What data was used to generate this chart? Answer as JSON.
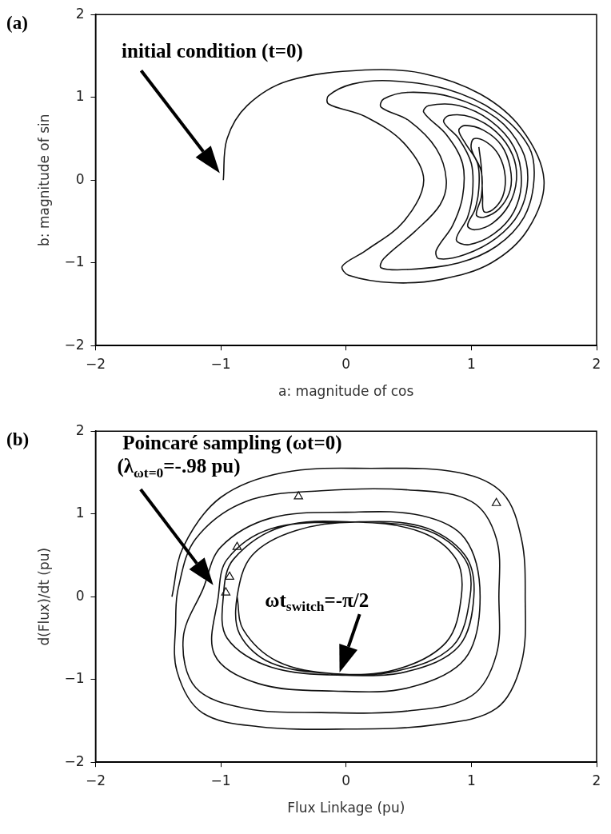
{
  "chart_data": [
    {
      "type": "line",
      "title": "(a)",
      "xlabel": "a: magnitude of cos",
      "ylabel": "b: magnitude of sin",
      "xlim": [
        -2,
        2
      ],
      "ylim": [
        -2,
        2
      ],
      "xticks": [
        -2,
        -1,
        0,
        1,
        2
      ],
      "yticks": [
        -2,
        -1,
        0,
        1,
        2
      ],
      "grid": false,
      "legend": false,
      "annotations": [
        "initial condition (t=0)"
      ],
      "series": [
        {
          "color": "#111111",
          "marker": "none",
          "x": [
            -0.98,
            -0.95,
            -0.79,
            -0.46,
            0.15,
            0.61,
            1.07,
            1.4,
            1.58,
            1.45,
            1.16,
            0.76,
            0.37,
            0.02,
            -0.03,
            0.15,
            0.46,
            0.62,
            0.46,
            0.15,
            -0.14,
            -0.14,
            0.05,
            0.35,
            0.8,
            1.2,
            1.46,
            1.5,
            1.42,
            1.2,
            0.9,
            0.5,
            0.28,
            0.3,
            0.55,
            0.75,
            0.8,
            0.72,
            0.5,
            0.28,
            0.3,
            0.5,
            0.85,
            1.2,
            1.4,
            1.45,
            1.38,
            1.2,
            0.95,
            0.74,
            0.72,
            0.85,
            0.93,
            0.93,
            0.8,
            0.62,
            0.66,
            0.9,
            1.15,
            1.34,
            1.4,
            1.34,
            1.18,
            0.98,
            0.88,
            0.97,
            1.01,
            1.0,
            0.9,
            0.78,
            0.82,
            1.0,
            1.2,
            1.33,
            1.36,
            1.3,
            1.17,
            1.03,
            0.97,
            1.03,
            1.06,
            1.05,
            0.95,
            0.9,
            0.95,
            1.1,
            1.24,
            1.31,
            1.31,
            1.22,
            1.1,
            1.04,
            1.08,
            1.08,
            1.0,
            1.02,
            1.12,
            1.22,
            1.27,
            1.25,
            1.17,
            1.1,
            1.09,
            1.08,
            1.06
          ],
          "values": [
            0,
            0.5,
            0.9,
            1.2,
            1.33,
            1.29,
            1.04,
            0.62,
            0,
            -0.6,
            -1.0,
            -1.2,
            -1.24,
            -1.15,
            -1.04,
            -0.86,
            -0.5,
            0,
            0.45,
            0.77,
            0.92,
            1.02,
            1.16,
            1.2,
            1.1,
            0.82,
            0.4,
            0,
            -0.45,
            -0.8,
            -1.0,
            -1.08,
            -1.06,
            -0.95,
            -0.62,
            -0.3,
            0,
            0.38,
            0.72,
            0.88,
            0.98,
            1.06,
            1.0,
            0.75,
            0.38,
            0,
            -0.4,
            -0.7,
            -0.9,
            -0.95,
            -0.85,
            -0.55,
            -0.2,
            0.2,
            0.55,
            0.82,
            0.9,
            0.9,
            0.72,
            0.4,
            0,
            -0.38,
            -0.65,
            -0.78,
            -0.72,
            -0.45,
            -0.15,
            0.2,
            0.5,
            0.7,
            0.78,
            0.76,
            0.58,
            0.3,
            0,
            -0.3,
            -0.52,
            -0.6,
            -0.55,
            -0.35,
            -0.1,
            0.2,
            0.45,
            0.6,
            0.66,
            0.6,
            0.42,
            0.15,
            -0.12,
            -0.35,
            -0.45,
            -0.42,
            -0.2,
            0.1,
            0.38,
            0.5,
            0.46,
            0.3,
            0.05,
            -0.2,
            -0.36,
            -0.38,
            -0.2,
            0.15,
            0.4
          ]
        }
      ]
    },
    {
      "type": "line",
      "title": "(b)",
      "xlabel": "Flux Linkage (pu)",
      "ylabel": "d(Flux)/dt (pu)",
      "xlim": [
        -2,
        2
      ],
      "ylim": [
        -2,
        2
      ],
      "xticks": [
        -2,
        -1,
        0,
        1,
        2
      ],
      "yticks": [
        -2,
        -1,
        0,
        1,
        2
      ],
      "grid": false,
      "legend": false,
      "annotations": [
        "Poincaré sampling (ωt=0)",
        "(λ$_{ωt=0}$=-.98 pu)",
        "ωt$_{switch}$=-π/2"
      ],
      "series": [
        {
          "color": "#111111",
          "marker": "none",
          "x": [
            -1.39,
            -1.3,
            -1.0,
            -0.5,
            0.2,
            0.9,
            1.25,
            1.4,
            1.43,
            1.4,
            1.2,
            0.7,
            0,
            -0.7,
            -1.15,
            -1.35,
            -1.36,
            -1.34,
            -1.2,
            -0.8,
            -0.2,
            0.5,
            1.0,
            1.2,
            1.22,
            1.2,
            1.0,
            0.5,
            -0.2,
            -0.8,
            -1.2,
            -1.3,
            -1.14,
            -1.0,
            -0.6,
            0,
            0.6,
            0.95,
            1.07,
            0.95,
            0.5,
            -0.1,
            -0.7,
            -1.05,
            -1.02,
            -0.95,
            -0.6,
            0,
            0.6,
            0.95,
            1.02,
            0.9,
            0.5,
            0,
            -0.6,
            -0.95,
            -0.98,
            -0.9,
            -0.5,
            0.1,
            0.65,
            0.95,
            0.99,
            0.85,
            0.4,
            -0.1,
            -0.6,
            -0.85,
            -0.87,
            -0.75,
            -0.4,
            0.1,
            0.6,
            0.88,
            0.92,
            0.8,
            0.4,
            -0.1,
            -0.55,
            -0.82,
            -0.87
          ],
          "values": [
            0,
            0.6,
            1.2,
            1.5,
            1.55,
            1.5,
            1.25,
            0.7,
            0,
            -0.8,
            -1.35,
            -1.55,
            -1.6,
            -1.57,
            -1.4,
            -0.9,
            -0.3,
            0.1,
            0.7,
            1.15,
            1.28,
            1.29,
            1.15,
            0.7,
            0,
            -0.7,
            -1.2,
            -1.38,
            -1.4,
            -1.35,
            -1.1,
            -0.5,
            0.1,
            0.6,
            0.95,
            1.02,
            0.98,
            0.7,
            0,
            -0.75,
            -1.1,
            -1.14,
            -1.05,
            -0.7,
            0,
            0.45,
            0.82,
            0.9,
            0.85,
            0.5,
            0,
            -0.6,
            -0.9,
            -0.95,
            -0.85,
            -0.5,
            0,
            0.45,
            0.85,
            0.9,
            0.8,
            0.45,
            0,
            -0.6,
            -0.9,
            -0.93,
            -0.8,
            -0.45,
            0,
            0.5,
            0.8,
            0.9,
            0.78,
            0.45,
            0,
            -0.55,
            -0.88,
            -0.93,
            -0.78,
            -0.4,
            0
          ]
        },
        {
          "type": "scatter",
          "color": "#111111",
          "marker": "triangle",
          "x": [
            -0.38,
            1.2,
            -0.87,
            -0.93,
            -0.96
          ],
          "values": [
            1.21,
            1.13,
            0.6,
            0.24,
            0.05
          ]
        }
      ]
    }
  ]
}
